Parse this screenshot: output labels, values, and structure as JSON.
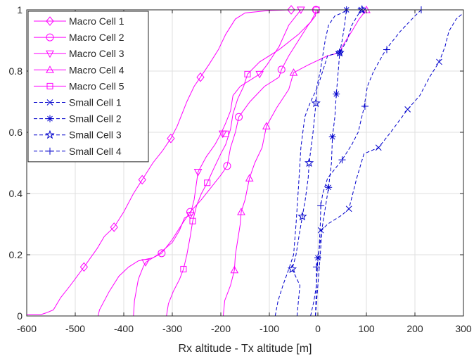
{
  "chart_data": {
    "type": "line",
    "title": "",
    "xlabel": "Rx altitude - Tx altitude [m]",
    "ylabel": "",
    "xlim": [
      -600,
      300
    ],
    "ylim": [
      0,
      1
    ],
    "xticks": [
      "-600",
      "-500",
      "-400",
      "-300",
      "-200",
      "-100",
      "0",
      "100",
      "200",
      "300"
    ],
    "yticks": [
      "0",
      "0.2",
      "0.4",
      "0.6",
      "0.8",
      "1"
    ],
    "grid": true,
    "legend_position": "top-left",
    "series": [
      {
        "name": "Macro Cell 1",
        "color": "#ff00ff",
        "dash": "solid",
        "marker": "diamond",
        "points": [
          [
            -600,
            0.005
          ],
          [
            -570,
            0.005
          ],
          [
            -560,
            0.01
          ],
          [
            -545,
            0.02
          ],
          [
            -530,
            0.06
          ],
          [
            -510,
            0.1
          ],
          [
            -482,
            0.16
          ],
          [
            -455,
            0.22
          ],
          [
            -440,
            0.26
          ],
          [
            -420,
            0.29
          ],
          [
            -400,
            0.34
          ],
          [
            -380,
            0.4
          ],
          [
            -362,
            0.445
          ],
          [
            -340,
            0.5
          ],
          [
            -320,
            0.54
          ],
          [
            -303,
            0.58
          ],
          [
            -290,
            0.62
          ],
          [
            -270,
            0.7
          ],
          [
            -255,
            0.75
          ],
          [
            -242,
            0.78
          ],
          [
            -225,
            0.82
          ],
          [
            -205,
            0.87
          ],
          [
            -190,
            0.92
          ],
          [
            -170,
            0.97
          ],
          [
            -150,
            0.99
          ],
          [
            -100,
            0.998
          ],
          [
            -55,
            1.0
          ]
        ],
        "marker_points": [
          [
            -482,
            0.16
          ],
          [
            -420,
            0.29
          ],
          [
            -362,
            0.445
          ],
          [
            -303,
            0.58
          ],
          [
            -242,
            0.78
          ],
          [
            -55,
            1.0
          ]
        ]
      },
      {
        "name": "Macro Cell 2",
        "color": "#ff00ff",
        "dash": "solid",
        "marker": "circle",
        "points": [
          [
            -453,
            0.0
          ],
          [
            -450,
            0.02
          ],
          [
            -430,
            0.08
          ],
          [
            -410,
            0.13
          ],
          [
            -390,
            0.16
          ],
          [
            -370,
            0.18
          ],
          [
            -340,
            0.19
          ],
          [
            -322,
            0.205
          ],
          [
            -300,
            0.25
          ],
          [
            -280,
            0.3
          ],
          [
            -263,
            0.34
          ],
          [
            -240,
            0.38
          ],
          [
            -220,
            0.42
          ],
          [
            -200,
            0.46
          ],
          [
            -187,
            0.49
          ],
          [
            -180,
            0.55
          ],
          [
            -170,
            0.6
          ],
          [
            -163,
            0.65
          ],
          [
            -140,
            0.7
          ],
          [
            -110,
            0.75
          ],
          [
            -80,
            0.78
          ],
          [
            -75,
            0.805
          ],
          [
            -60,
            0.85
          ],
          [
            -40,
            0.9
          ],
          [
            -20,
            0.95
          ],
          [
            -5,
            0.98
          ],
          [
            -4,
            1.0
          ]
        ],
        "marker_points": [
          [
            -322,
            0.205
          ],
          [
            -263,
            0.34
          ],
          [
            -187,
            0.49
          ],
          [
            -163,
            0.65
          ],
          [
            -75,
            0.805
          ],
          [
            -4,
            1.0
          ]
        ]
      },
      {
        "name": "Macro Cell 3",
        "color": "#ff00ff",
        "dash": "solid",
        "marker": "triangle-down",
        "points": [
          [
            -380,
            0.0
          ],
          [
            -378,
            0.05
          ],
          [
            -370,
            0.12
          ],
          [
            -360,
            0.16
          ],
          [
            -355,
            0.175
          ],
          [
            -330,
            0.2
          ],
          [
            -300,
            0.24
          ],
          [
            -285,
            0.28
          ],
          [
            -275,
            0.32
          ],
          [
            -263,
            0.33
          ],
          [
            -255,
            0.38
          ],
          [
            -247,
            0.47
          ],
          [
            -230,
            0.52
          ],
          [
            -212,
            0.56
          ],
          [
            -200,
            0.595
          ],
          [
            -190,
            0.63
          ],
          [
            -180,
            0.67
          ],
          [
            -175,
            0.72
          ],
          [
            -160,
            0.75
          ],
          [
            -120,
            0.79
          ],
          [
            -105,
            0.82
          ],
          [
            -80,
            0.88
          ],
          [
            -60,
            0.95
          ],
          [
            -40,
            0.99
          ],
          [
            -35,
            1.0
          ]
        ],
        "marker_points": [
          [
            -355,
            0.175
          ],
          [
            -263,
            0.33
          ],
          [
            -247,
            0.47
          ],
          [
            -196,
            0.595
          ],
          [
            -120,
            0.79
          ],
          [
            -35,
            1.0
          ]
        ]
      },
      {
        "name": "Macro Cell 4",
        "color": "#ff00ff",
        "dash": "solid",
        "marker": "triangle-up",
        "points": [
          [
            -195,
            0.0
          ],
          [
            -192,
            0.05
          ],
          [
            -180,
            0.1
          ],
          [
            -172,
            0.15
          ],
          [
            -170,
            0.2
          ],
          [
            -165,
            0.25
          ],
          [
            -160,
            0.3
          ],
          [
            -158,
            0.34
          ],
          [
            -150,
            0.38
          ],
          [
            -141,
            0.45
          ],
          [
            -130,
            0.5
          ],
          [
            -115,
            0.55
          ],
          [
            -106,
            0.62
          ],
          [
            -85,
            0.68
          ],
          [
            -60,
            0.74
          ],
          [
            -50,
            0.795
          ],
          [
            -20,
            0.82
          ],
          [
            20,
            0.85
          ],
          [
            45,
            0.86
          ],
          [
            50,
            0.88
          ],
          [
            70,
            0.93
          ],
          [
            85,
            0.97
          ],
          [
            100,
            1.0
          ]
        ],
        "marker_points": [
          [
            -172,
            0.15
          ],
          [
            -158,
            0.34
          ],
          [
            -141,
            0.45
          ],
          [
            -106,
            0.62
          ],
          [
            -50,
            0.795
          ],
          [
            100,
            1.0
          ]
        ]
      },
      {
        "name": "Macro Cell 5",
        "color": "#ff00ff",
        "dash": "solid",
        "marker": "square",
        "points": [
          [
            -312,
            0.0
          ],
          [
            -308,
            0.04
          ],
          [
            -298,
            0.08
          ],
          [
            -285,
            0.12
          ],
          [
            -277,
            0.153
          ],
          [
            -270,
            0.2
          ],
          [
            -263,
            0.26
          ],
          [
            -258,
            0.31
          ],
          [
            -250,
            0.36
          ],
          [
            -240,
            0.4
          ],
          [
            -228,
            0.435
          ],
          [
            -215,
            0.48
          ],
          [
            -200,
            0.53
          ],
          [
            -190,
            0.56
          ],
          [
            -180,
            0.61
          ],
          [
            -175,
            0.66
          ],
          [
            -165,
            0.71
          ],
          [
            -153,
            0.75
          ],
          [
            -145,
            0.79
          ],
          [
            -120,
            0.83
          ],
          [
            -80,
            0.87
          ],
          [
            -40,
            0.92
          ],
          [
            -15,
            0.96
          ],
          [
            -5,
            0.99
          ],
          [
            -3,
            1.0
          ]
        ],
        "marker_points": [
          [
            -277,
            0.153
          ],
          [
            -258,
            0.31
          ],
          [
            -228,
            0.435
          ],
          [
            -190,
            0.595
          ],
          [
            -145,
            0.79
          ],
          [
            -3,
            1.0
          ]
        ]
      },
      {
        "name": "Small Cell 1",
        "color": "#0000cc",
        "dash": "dashed",
        "marker": "x",
        "points": [
          [
            -88,
            0.0
          ],
          [
            -82,
            0.05
          ],
          [
            -72,
            0.1
          ],
          [
            -60,
            0.153
          ],
          [
            -50,
            0.2
          ],
          [
            -45,
            0.3
          ],
          [
            -40,
            0.42
          ],
          [
            -35,
            0.55
          ],
          [
            -27,
            0.65
          ],
          [
            -15,
            0.7
          ],
          [
            0,
            0.75
          ],
          [
            10,
            0.8
          ],
          [
            20,
            0.85
          ],
          [
            45,
            0.86
          ],
          [
            60,
            0.9
          ],
          [
            70,
            0.95
          ],
          [
            85,
            0.99
          ],
          [
            90,
            1.0
          ]
        ],
        "marker_points": [
          [
            6,
            0.28
          ],
          [
            64,
            0.35
          ],
          [
            125,
            0.55
          ],
          [
            185,
            0.675
          ],
          [
            250,
            0.83
          ],
          [
            90,
            1.0
          ]
        ]
      },
      {
        "name": "Small Cell 2",
        "color": "#0000cc",
        "dash": "dashed",
        "marker": "asterisk",
        "points": [
          [
            -15,
            0.0
          ],
          [
            -8,
            0.05
          ],
          [
            -3,
            0.1
          ],
          [
            0,
            0.19
          ],
          [
            10,
            0.3
          ],
          [
            22,
            0.42
          ],
          [
            28,
            0.5
          ],
          [
            30,
            0.585
          ],
          [
            35,
            0.65
          ],
          [
            38,
            0.725
          ],
          [
            42,
            0.8
          ],
          [
            45,
            0.86
          ],
          [
            50,
            0.9
          ],
          [
            55,
            0.95
          ],
          [
            58,
            0.99
          ],
          [
            59,
            1.0
          ]
        ],
        "marker_points": [
          [
            0,
            0.19
          ],
          [
            22,
            0.42
          ],
          [
            30,
            0.585
          ],
          [
            38,
            0.725
          ],
          [
            45,
            0.86
          ],
          [
            59,
            1.0
          ]
        ]
      },
      {
        "name": "Small Cell 3",
        "color": "#0000cc",
        "dash": "dashed",
        "marker": "star",
        "points": [
          [
            -43,
            0.0
          ],
          [
            -40,
            0.05
          ],
          [
            -37,
            0.1
          ],
          [
            -53,
            0.153
          ],
          [
            -45,
            0.2
          ],
          [
            -38,
            0.27
          ],
          [
            -32,
            0.325
          ],
          [
            -26,
            0.38
          ],
          [
            -20,
            0.45
          ],
          [
            -18,
            0.5
          ],
          [
            -10,
            0.6
          ],
          [
            -4,
            0.695
          ],
          [
            -2,
            0.75
          ],
          [
            5,
            0.8
          ],
          [
            10,
            0.85
          ],
          [
            15,
            0.9
          ],
          [
            22,
            0.95
          ],
          [
            35,
            0.98
          ],
          [
            50,
            0.99
          ],
          [
            60,
            1.0
          ]
        ],
        "marker_points": [
          [
            -53,
            0.153
          ],
          [
            -32,
            0.325
          ],
          [
            -18,
            0.5
          ],
          [
            -4,
            0.695
          ],
          [
            45,
            0.86
          ],
          [
            91,
            1.0
          ]
        ]
      },
      {
        "name": "Small Cell 4",
        "color": "#0000cc",
        "dash": "dashed",
        "marker": "plus",
        "points": [
          [
            -5,
            0.0
          ],
          [
            -3,
            0.1
          ],
          [
            -3,
            0.16
          ],
          [
            2,
            0.2
          ],
          [
            5,
            0.3
          ],
          [
            6,
            0.36
          ],
          [
            10,
            0.4
          ],
          [
            20,
            0.45
          ],
          [
            45,
            0.5
          ],
          [
            50,
            0.51
          ],
          [
            70,
            0.56
          ],
          [
            83,
            0.6
          ],
          [
            95,
            0.68
          ],
          [
            102,
            0.75
          ],
          [
            115,
            0.8
          ],
          [
            140,
            0.87
          ],
          [
            170,
            0.93
          ],
          [
            200,
            0.98
          ],
          [
            213,
            1.0
          ]
        ],
        "marker_points": [
          [
            -3,
            0.16
          ],
          [
            6,
            0.36
          ],
          [
            50,
            0.51
          ],
          [
            97,
            0.685
          ],
          [
            142,
            0.87
          ],
          [
            213,
            1.0
          ]
        ]
      }
    ],
    "extra_lines": [
      {
        "series_ref": "Small Cell 1 (right branch)",
        "color": "#0000cc",
        "dash": "dashed",
        "points": [
          [
            -5,
            0.0
          ],
          [
            0,
            0.1
          ],
          [
            5,
            0.2
          ],
          [
            8,
            0.28
          ],
          [
            20,
            0.3
          ],
          [
            50,
            0.33
          ],
          [
            64,
            0.35
          ],
          [
            80,
            0.45
          ],
          [
            95,
            0.53
          ],
          [
            125,
            0.55
          ],
          [
            150,
            0.6
          ],
          [
            185,
            0.675
          ],
          [
            210,
            0.72
          ],
          [
            230,
            0.78
          ],
          [
            250,
            0.83
          ],
          [
            262,
            0.88
          ],
          [
            270,
            0.93
          ],
          [
            285,
            0.97
          ],
          [
            300,
            0.99
          ]
        ]
      }
    ]
  }
}
